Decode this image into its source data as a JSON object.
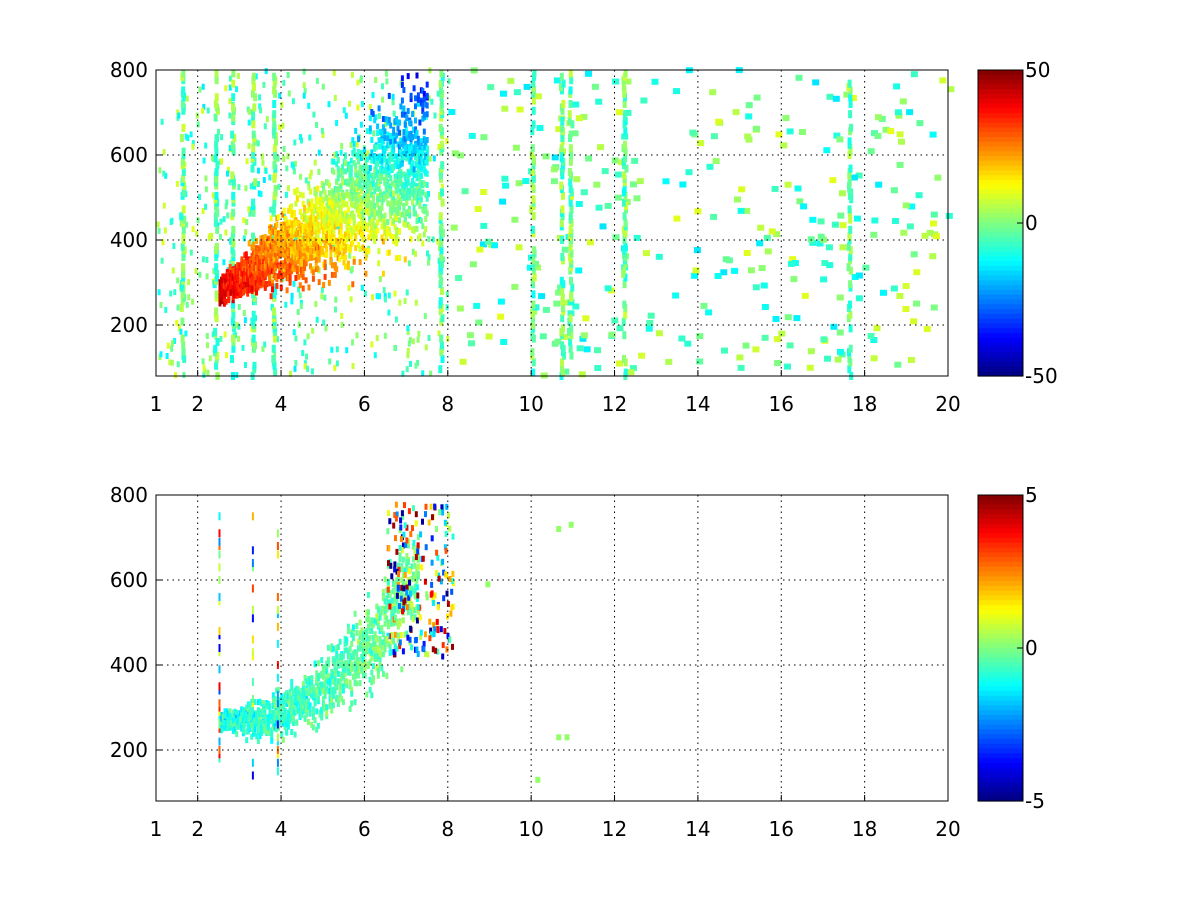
{
  "chart_data": [
    {
      "type": "heatmap",
      "title": "",
      "xlabel": "",
      "ylabel": "",
      "xlim": [
        1,
        20
      ],
      "ylim": [
        80,
        800
      ],
      "x_ticks": [
        "1",
        "2",
        "4",
        "6",
        "8",
        "10",
        "12",
        "14",
        "16",
        "18",
        "20"
      ],
      "y_ticks": [
        "200",
        "400",
        "600",
        "800"
      ],
      "grid": true,
      "colormap": "jet",
      "clim": [
        -50,
        50
      ],
      "colorbar_ticks": [
        "50",
        "0",
        "-50"
      ],
      "features": {
        "main_band": {
          "x_range": [
            2.5,
            7.5
          ],
          "y_at_start": 280,
          "y_at_end": 600,
          "value_start": 40,
          "value_end": -30
        },
        "sparse_scatter_x_range": [
          1,
          20
        ],
        "sparse_values": [
          -15,
          10
        ],
        "vertical_streak_x": [
          1.6,
          2.4,
          2.8,
          3.3,
          3.8,
          7.8,
          10,
          10.7,
          10.9,
          12.2,
          17.6
        ]
      }
    },
    {
      "type": "heatmap",
      "title": "",
      "xlabel": "",
      "ylabel": "",
      "xlim": [
        1,
        20
      ],
      "ylim": [
        80,
        800
      ],
      "x_ticks": [
        "1",
        "2",
        "4",
        "6",
        "8",
        "10",
        "12",
        "14",
        "16",
        "18",
        "20"
      ],
      "y_ticks": [
        "200",
        "400",
        "600",
        "800"
      ],
      "grid": true,
      "colormap": "jet",
      "clim": [
        -5,
        5
      ],
      "colorbar_ticks": [
        "5",
        "0",
        "-5"
      ],
      "features": {
        "main_band": {
          "x_range": [
            2.5,
            7.3
          ],
          "y_at_start": 280,
          "y_at_end": 700,
          "value_start": -1,
          "value_end": 0
        },
        "outlier_x_range": [
          6.5,
          8.1
        ],
        "outlier_values": [
          -5,
          5
        ],
        "isolated_points": [
          [
            10.6,
            720
          ],
          [
            10.9,
            730
          ],
          [
            10.6,
            230
          ],
          [
            10.8,
            230
          ],
          [
            8.9,
            590
          ],
          [
            10.1,
            130
          ]
        ]
      }
    }
  ]
}
